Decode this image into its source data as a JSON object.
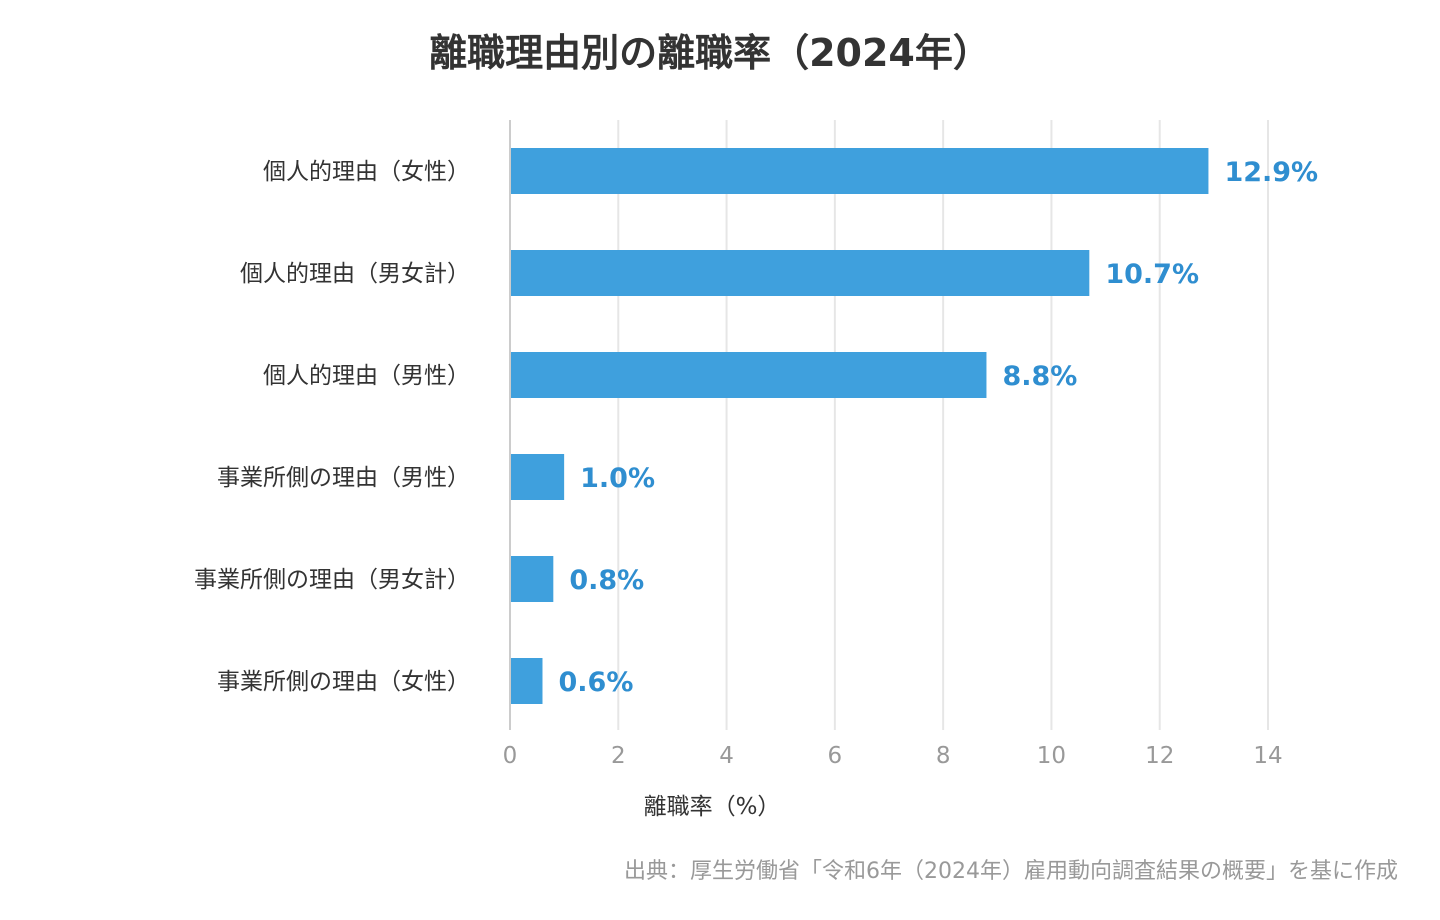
{
  "chart_data": {
    "type": "bar",
    "orientation": "horizontal",
    "title": "離職理由別の離職率（2024年）",
    "xlabel": "離職率（%）",
    "ylabel": "",
    "categories": [
      "個人的理由（女性）",
      "個人的理由（男女計）",
      "個人的理由（男性）",
      "事業所側の理由（男性）",
      "事業所側の理由（男女計）",
      "事業所側の理由（女性）"
    ],
    "values": [
      12.9,
      10.7,
      8.8,
      1.0,
      0.8,
      0.6
    ],
    "data_labels": [
      "12.9%",
      "10.7%",
      "8.8%",
      "1.0%",
      "0.8%",
      "0.6%"
    ],
    "xlim": [
      0,
      14
    ],
    "xticks": [
      0,
      2,
      4,
      6,
      8,
      10,
      12,
      14
    ],
    "grid": true,
    "legend": "none",
    "bar_color": "#3fa0dd",
    "label_color": "#2f8ed0"
  },
  "source": "出典：厚生労働省「令和6年（2024年）雇用動向調査結果の概要」を基に作成"
}
